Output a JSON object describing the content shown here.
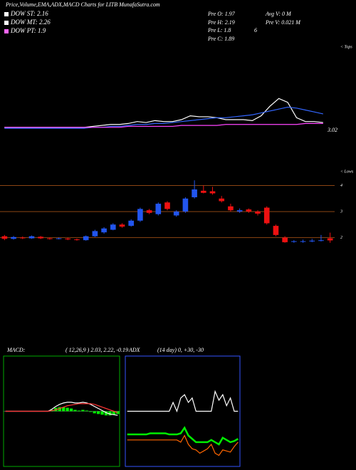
{
  "header": {
    "title": "Price,Volume,EMA,ADX,MACD Charts for LITB MunafaSutra.com",
    "dow": [
      {
        "text": "DOW ST: 2.16",
        "color": "#ffffff"
      },
      {
        "text": "DOW MT: 2.26",
        "color": "#ffffff"
      },
      {
        "text": "DOW PT: 1.9",
        "color": "#ff66ff"
      }
    ],
    "stats": [
      "Pre  O: 1.97",
      "Avg V: 0  M",
      "Pre  H: 2.19",
      "Pre  V: 0.021 M",
      "Pre  L: 1.8",
      "6",
      "Pre  C: 1.89"
    ]
  },
  "chart_data": [
    {
      "type": "line",
      "side_label": "< Tops",
      "last_label": "3.02",
      "ylim": [
        0,
        100
      ],
      "series": [
        {
          "color": "#ffffff",
          "values": [
            12,
            12,
            12,
            12,
            12,
            12,
            12,
            12,
            12,
            12,
            13,
            14,
            15,
            15,
            16,
            18,
            17,
            19,
            18,
            18,
            20,
            24,
            23,
            23,
            22,
            20,
            20,
            20,
            19,
            24,
            34,
            42,
            38,
            22,
            18,
            18,
            17
          ]
        },
        {
          "color": "#3366ff",
          "values": [
            11,
            11,
            11,
            11,
            11,
            11,
            11,
            11,
            11,
            11,
            12,
            12,
            13,
            13,
            14,
            15,
            15,
            16,
            16,
            17,
            18,
            19,
            20,
            21,
            22,
            22,
            23,
            24,
            25,
            27,
            29,
            31,
            33,
            32,
            30,
            28,
            26
          ]
        },
        {
          "color": "#ff44ff",
          "values": [
            12,
            12,
            12,
            12,
            12,
            12,
            12,
            12,
            12,
            12,
            12,
            12,
            12,
            12,
            13,
            13,
            13,
            13,
            13,
            13,
            14,
            14,
            14,
            14,
            14,
            15,
            15,
            15,
            15,
            15,
            15,
            15,
            15,
            15,
            16,
            16,
            16
          ]
        }
      ]
    },
    {
      "type": "candlestick",
      "side_label": "< Lows",
      "ylim": [
        1.55,
        4.7
      ],
      "yticks": [
        2,
        3,
        4
      ],
      "grid_color": "#8b4513",
      "up_color": "#2255ee",
      "down_color": "#ee1111",
      "ohlc": [
        [
          2.05,
          2.1,
          1.9,
          1.95
        ],
        [
          1.95,
          2.06,
          1.92,
          2.02
        ],
        [
          2.0,
          2.04,
          1.94,
          1.98
        ],
        [
          1.97,
          2.08,
          1.95,
          2.05
        ],
        [
          2.03,
          2.06,
          1.94,
          1.97
        ],
        [
          1.97,
          2.0,
          1.92,
          1.95
        ],
        [
          1.95,
          2.0,
          1.93,
          1.97
        ],
        [
          1.96,
          1.99,
          1.9,
          1.93
        ],
        [
          1.93,
          1.96,
          1.88,
          1.92
        ],
        [
          1.9,
          2.08,
          1.88,
          2.05
        ],
        [
          2.05,
          2.3,
          2.02,
          2.25
        ],
        [
          2.2,
          2.4,
          2.15,
          2.35
        ],
        [
          2.3,
          2.55,
          2.28,
          2.5
        ],
        [
          2.5,
          2.55,
          2.38,
          2.42
        ],
        [
          2.45,
          2.7,
          2.42,
          2.65
        ],
        [
          2.65,
          3.15,
          2.6,
          3.1
        ],
        [
          3.05,
          3.1,
          2.9,
          2.95
        ],
        [
          2.9,
          3.35,
          2.85,
          3.3
        ],
        [
          3.35,
          3.4,
          3.05,
          3.1
        ],
        [
          2.85,
          3.05,
          2.8,
          3.0
        ],
        [
          3.0,
          3.55,
          2.95,
          3.5
        ],
        [
          3.55,
          4.2,
          3.5,
          3.85
        ],
        [
          3.8,
          4.0,
          3.7,
          3.72
        ],
        [
          3.78,
          3.95,
          3.65,
          3.7
        ],
        [
          3.5,
          3.6,
          3.35,
          3.4
        ],
        [
          3.2,
          3.3,
          3.0,
          3.05
        ],
        [
          3.0,
          3.12,
          2.95,
          3.05
        ],
        [
          3.08,
          3.12,
          2.95,
          3.0
        ],
        [
          3.0,
          3.05,
          2.85,
          2.92
        ],
        [
          3.15,
          3.2,
          2.5,
          2.55
        ],
        [
          2.45,
          2.5,
          2.05,
          2.1
        ],
        [
          2.0,
          2.05,
          1.8,
          1.82
        ],
        [
          1.84,
          1.9,
          1.8,
          1.86
        ],
        [
          1.84,
          1.92,
          1.8,
          1.86
        ],
        [
          1.85,
          1.95,
          1.82,
          1.88
        ],
        [
          1.87,
          2.1,
          1.85,
          1.9
        ],
        [
          1.97,
          2.19,
          1.8,
          1.89
        ]
      ]
    },
    {
      "type": "macd",
      "title": "MACD:",
      "subtitle": "( 12,26,9 ) 2.03, 2.22, -0.19",
      "ylim": [
        -0.8,
        0.8
      ],
      "border": "#00aa00",
      "series": [
        {
          "color": "#00ee00",
          "bars": true,
          "values": [
            0,
            0,
            0,
            0,
            0,
            0,
            0,
            0,
            0,
            0,
            0,
            0,
            0.02,
            0.05,
            0.06,
            0.06,
            0.05,
            0.04,
            0.02,
            0.01,
            0.02,
            0.01,
            -0.01,
            -0.03,
            -0.04,
            -0.05,
            -0.06,
            -0.06,
            -0.05,
            -0.04
          ]
        },
        {
          "color": "#ffffff",
          "values": [
            0,
            0,
            0,
            0,
            0,
            0,
            0,
            0,
            0,
            0,
            0,
            0,
            0.03,
            0.07,
            0.1,
            0.12,
            0.13,
            0.13,
            0.12,
            0.12,
            0.13,
            0.12,
            0.1,
            0.07,
            0.04,
            0.01,
            -0.02,
            -0.04,
            -0.05,
            -0.06
          ]
        },
        {
          "color": "#ff3333",
          "values": [
            0,
            0,
            0,
            0,
            0,
            0,
            0,
            0,
            0,
            0,
            0,
            0,
            0.01,
            0.02,
            0.04,
            0.06,
            0.08,
            0.09,
            0.1,
            0.11,
            0.11,
            0.11,
            0.11,
            0.1,
            0.08,
            0.06,
            0.04,
            0.02,
            0,
            -0.02
          ]
        }
      ]
    },
    {
      "type": "line",
      "title": "ADX",
      "subtitle": "(14  day) 0, +30, -30",
      "ylim": [
        0,
        100
      ],
      "border": "#3355ff",
      "series": [
        {
          "color": "#ffffff",
          "values": [
            50,
            50,
            50,
            50,
            50,
            50,
            50,
            50,
            50,
            50,
            50,
            50,
            58,
            50,
            62,
            65,
            58,
            62,
            50,
            50,
            50,
            50,
            50,
            68,
            60,
            65,
            55,
            62,
            50,
            50
          ]
        },
        {
          "color": "#ff6600",
          "values": [
            24,
            24,
            24,
            24,
            24,
            24,
            24,
            24,
            24,
            24,
            24,
            24,
            24,
            24,
            22,
            28,
            20,
            16,
            15,
            12,
            14,
            16,
            20,
            12,
            10,
            15,
            14,
            13,
            18,
            22
          ]
        },
        {
          "color": "#00ee00",
          "width": 2.5,
          "values": [
            29,
            29,
            29,
            29,
            29,
            29,
            30,
            30,
            30,
            30,
            30,
            29,
            29,
            29,
            30,
            35,
            28,
            25,
            22,
            22,
            22,
            22,
            24,
            22,
            20,
            26,
            24,
            22,
            23,
            25
          ]
        }
      ]
    }
  ]
}
